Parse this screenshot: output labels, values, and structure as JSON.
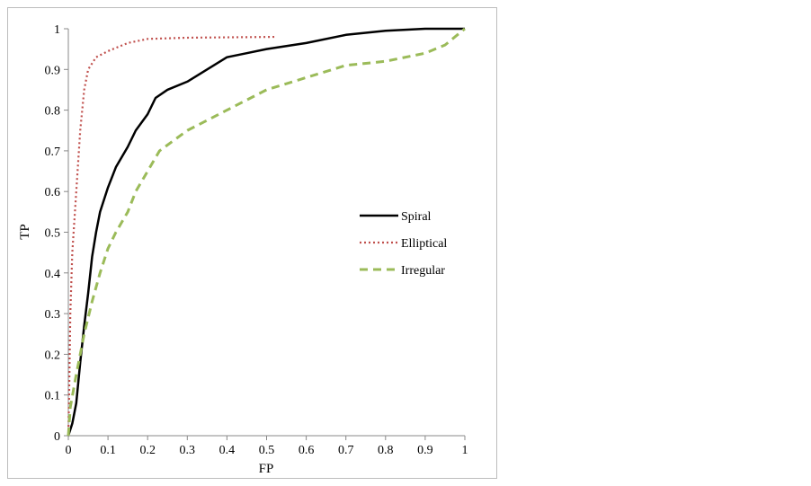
{
  "chart_data": {
    "type": "line",
    "title": "",
    "xlabel": "FP",
    "ylabel": "TP",
    "xlim": [
      0,
      1
    ],
    "ylim": [
      0,
      1
    ],
    "xticks": [
      "0",
      "0.1",
      "0.2",
      "0.3",
      "0.4",
      "0.5",
      "0.6",
      "0.7",
      "0.8",
      "0.9",
      "1"
    ],
    "yticks": [
      "0",
      "0.1",
      "0.2",
      "0.3",
      "0.4",
      "0.5",
      "0.6",
      "0.7",
      "0.8",
      "0.9",
      "1"
    ],
    "grid": false,
    "legend_position": "right",
    "series": [
      {
        "name": "Spiral",
        "color": "#000000",
        "style": "solid",
        "x": [
          0,
          0.01,
          0.02,
          0.03,
          0.04,
          0.05,
          0.06,
          0.07,
          0.08,
          0.1,
          0.12,
          0.15,
          0.17,
          0.2,
          0.22,
          0.25,
          0.3,
          0.35,
          0.4,
          0.45,
          0.5,
          0.6,
          0.7,
          0.8,
          0.9,
          1
        ],
        "y": [
          0,
          0.03,
          0.08,
          0.18,
          0.27,
          0.35,
          0.44,
          0.5,
          0.55,
          0.61,
          0.66,
          0.71,
          0.75,
          0.79,
          0.83,
          0.85,
          0.87,
          0.9,
          0.93,
          0.94,
          0.95,
          0.965,
          0.985,
          0.995,
          1.0,
          1.0
        ]
      },
      {
        "name": "Elliptical",
        "color": "#c0504d",
        "style": "dotted",
        "x": [
          0,
          0.002,
          0.005,
          0.01,
          0.02,
          0.03,
          0.04,
          0.05,
          0.07,
          0.1,
          0.15,
          0.2,
          0.3,
          0.52
        ],
        "y": [
          0,
          0.1,
          0.3,
          0.45,
          0.6,
          0.75,
          0.85,
          0.9,
          0.93,
          0.945,
          0.965,
          0.975,
          0.978,
          0.98
        ]
      },
      {
        "name": "Irregular",
        "color": "#9bbb59",
        "style": "dashed",
        "x": [
          0,
          0.005,
          0.02,
          0.04,
          0.06,
          0.08,
          0.1,
          0.12,
          0.15,
          0.17,
          0.2,
          0.23,
          0.3,
          0.4,
          0.5,
          0.6,
          0.7,
          0.8,
          0.9,
          0.95,
          1
        ],
        "y": [
          0,
          0.07,
          0.15,
          0.25,
          0.33,
          0.4,
          0.46,
          0.5,
          0.55,
          0.6,
          0.65,
          0.7,
          0.75,
          0.8,
          0.85,
          0.88,
          0.91,
          0.92,
          0.94,
          0.96,
          1.0
        ]
      }
    ]
  }
}
